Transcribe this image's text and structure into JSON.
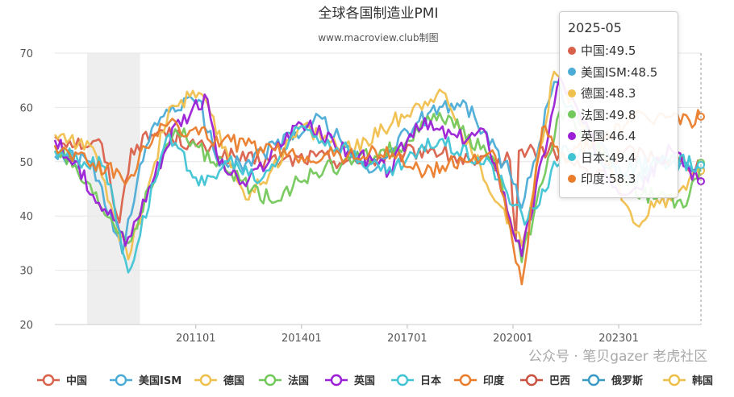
{
  "chart_data": {
    "type": "line",
    "title": "全球各国制造业PMI",
    "subtitle": "www.macroview.club制图",
    "xlabel": "",
    "ylabel": "",
    "ylim": [
      20,
      70
    ],
    "yticks": [
      20,
      30,
      40,
      50,
      60,
      70
    ],
    "xticks": [
      "201101",
      "201401",
      "201701",
      "202001",
      "202301"
    ],
    "x_range": [
      "2007-01",
      "2025-05"
    ],
    "shaded_region": [
      "2007-12",
      "2009-06"
    ],
    "grid": true,
    "legend_position": "bottom",
    "series": [
      {
        "name": "中国",
        "color": "#d9604a",
        "points": [
          [
            "2007-01",
            54.6
          ],
          [
            "2008-01",
            53.0
          ],
          [
            "2008-05",
            53.3
          ],
          [
            "2008-11",
            38.8
          ],
          [
            "2009-03",
            52.4
          ],
          [
            "2010-01",
            55.8
          ],
          [
            "2011-01",
            52.9
          ],
          [
            "2012-06",
            50.2
          ],
          [
            "2013-06",
            50.1
          ],
          [
            "2014-06",
            51.0
          ],
          [
            "2015-08",
            49.7
          ],
          [
            "2016-12",
            51.4
          ],
          [
            "2017-09",
            52.4
          ],
          [
            "2018-12",
            49.4
          ],
          [
            "2019-12",
            50.2
          ],
          [
            "2020-02",
            35.7
          ],
          [
            "2020-03",
            52.0
          ],
          [
            "2021-03",
            51.9
          ],
          [
            "2022-04",
            47.4
          ],
          [
            "2023-03",
            51.9
          ],
          [
            "2024-03",
            50.8
          ],
          [
            "2025-05",
            49.5
          ]
        ]
      },
      {
        "name": "美国ISM",
        "color": "#4bacd6",
        "points": [
          [
            "2007-01",
            51.0
          ],
          [
            "2008-01",
            50.0
          ],
          [
            "2008-12",
            33.1
          ],
          [
            "2009-08",
            52.8
          ],
          [
            "2010-03",
            59.6
          ],
          [
            "2011-02",
            61.4
          ],
          [
            "2011-08",
            50.6
          ],
          [
            "2012-06",
            49.7
          ],
          [
            "2014-08",
            57.9
          ],
          [
            "2015-12",
            48.0
          ],
          [
            "2017-08",
            58.8
          ],
          [
            "2018-08",
            61.3
          ],
          [
            "2019-12",
            47.8
          ],
          [
            "2020-04",
            41.5
          ],
          [
            "2021-03",
            64.7
          ],
          [
            "2022-12",
            48.4
          ],
          [
            "2023-06",
            46.0
          ],
          [
            "2024-03",
            50.3
          ],
          [
            "2025-05",
            48.5
          ]
        ]
      },
      {
        "name": "德国",
        "color": "#f0c04e",
        "points": [
          [
            "2007-01",
            55.0
          ],
          [
            "2008-01",
            53.0
          ],
          [
            "2009-02",
            32.0
          ],
          [
            "2010-04",
            60.0
          ],
          [
            "2011-02",
            62.7
          ],
          [
            "2012-07",
            43.0
          ],
          [
            "2014-01",
            56.5
          ],
          [
            "2015-06",
            51.9
          ],
          [
            "2017-12",
            63.3
          ],
          [
            "2019-09",
            41.7
          ],
          [
            "2020-04",
            34.5
          ],
          [
            "2021-03",
            66.6
          ],
          [
            "2022-12",
            47.1
          ],
          [
            "2023-06",
            38.8
          ],
          [
            "2024-06",
            43.5
          ],
          [
            "2025-05",
            48.3
          ]
        ]
      },
      {
        "name": "法国",
        "color": "#72c85a",
        "points": [
          [
            "2007-01",
            53.0
          ],
          [
            "2009-02",
            35.0
          ],
          [
            "2010-06",
            56.0
          ],
          [
            "2011-12",
            48.0
          ],
          [
            "2013-02",
            43.0
          ],
          [
            "2014-06",
            48.0
          ],
          [
            "2016-12",
            53.0
          ],
          [
            "2017-12",
            59.0
          ],
          [
            "2019-06",
            51.0
          ],
          [
            "2020-04",
            31.5
          ],
          [
            "2021-05",
            59.4
          ],
          [
            "2022-12",
            49.0
          ],
          [
            "2023-09",
            44.0
          ],
          [
            "2024-12",
            41.9
          ],
          [
            "2025-05",
            49.8
          ]
        ]
      },
      {
        "name": "英国",
        "color": "#9b1fd6",
        "points": [
          [
            "2007-01",
            54.0
          ],
          [
            "2008-10",
            39.0
          ],
          [
            "2009-01",
            34.5
          ],
          [
            "2010-06",
            57.0
          ],
          [
            "2011-05",
            61.5
          ],
          [
            "2011-09",
            49.5
          ],
          [
            "2012-06",
            45.5
          ],
          [
            "2013-12",
            57.3
          ],
          [
            "2015-06",
            51.5
          ],
          [
            "2016-07",
            48.3
          ],
          [
            "2017-04",
            57.0
          ],
          [
            "2018-06",
            54.5
          ],
          [
            "2019-04",
            55.1
          ],
          [
            "2019-08",
            47.4
          ],
          [
            "2020-04",
            32.6
          ],
          [
            "2021-05",
            65.6
          ],
          [
            "2022-12",
            45.3
          ],
          [
            "2023-07",
            45.3
          ],
          [
            "2024-07",
            52.1
          ],
          [
            "2025-05",
            46.4
          ]
        ]
      },
      {
        "name": "日本",
        "color": "#40c4d4",
        "points": [
          [
            "2007-01",
            52.0
          ],
          [
            "2008-06",
            49.0
          ],
          [
            "2009-02",
            29.6
          ],
          [
            "2010-03",
            54.5
          ],
          [
            "2011-04",
            45.7
          ],
          [
            "2011-12",
            50.0
          ],
          [
            "2012-11",
            46.5
          ],
          [
            "2014-01",
            56.6
          ],
          [
            "2016-06",
            47.9
          ],
          [
            "2017-12",
            54.0
          ],
          [
            "2019-06",
            49.3
          ],
          [
            "2020-05",
            38.4
          ],
          [
            "2021-07",
            53.0
          ],
          [
            "2022-12",
            48.9
          ],
          [
            "2024-06",
            50.0
          ],
          [
            "2025-05",
            49.4
          ]
        ]
      },
      {
        "name": "印度",
        "color": "#ea7d2c",
        "points": [
          [
            "2007-01",
            53.0
          ],
          [
            "2009-02",
            46.8
          ],
          [
            "2010-01",
            57.0
          ],
          [
            "2012-06",
            53.0
          ],
          [
            "2014-01",
            51.0
          ],
          [
            "2016-08",
            51.5
          ],
          [
            "2017-07",
            47.9
          ],
          [
            "2019-06",
            52.1
          ],
          [
            "2020-04",
            27.4
          ],
          [
            "2020-11",
            56.3
          ],
          [
            "2021-05",
            50.8
          ],
          [
            "2022-06",
            53.9
          ],
          [
            "2023-06",
            57.8
          ],
          [
            "2024-06",
            58.3
          ],
          [
            "2025-01",
            57.7
          ],
          [
            "2025-05",
            58.3
          ]
        ]
      }
    ],
    "legend": [
      "中国",
      "美国ISM",
      "德国",
      "法国",
      "英国",
      "日本",
      "印度",
      "巴西",
      "俄罗斯",
      "韩国"
    ],
    "legend_colors": [
      "#d9604a",
      "#4bacd6",
      "#f0c04e",
      "#72c85a",
      "#9b1fd6",
      "#40c4d4",
      "#ea7d2c",
      "#c9513f",
      "#3a9ac4",
      "#eec04a"
    ]
  },
  "tooltip": {
    "title": "2025-05",
    "items": [
      {
        "label": "中国:49.5",
        "color": "#d9604a"
      },
      {
        "label": "美国ISM:48.5",
        "color": "#4bacd6"
      },
      {
        "label": "德国:48.3",
        "color": "#f0c04e"
      },
      {
        "label": "法国:49.8",
        "color": "#72c85a"
      },
      {
        "label": "英国:46.4",
        "color": "#9b1fd6"
      },
      {
        "label": "日本:49.4",
        "color": "#40c4d4"
      },
      {
        "label": "印度:58.3",
        "color": "#ea7d2c"
      }
    ]
  },
  "watermark": "公众号 · 笔贝gazer  老虎社区"
}
